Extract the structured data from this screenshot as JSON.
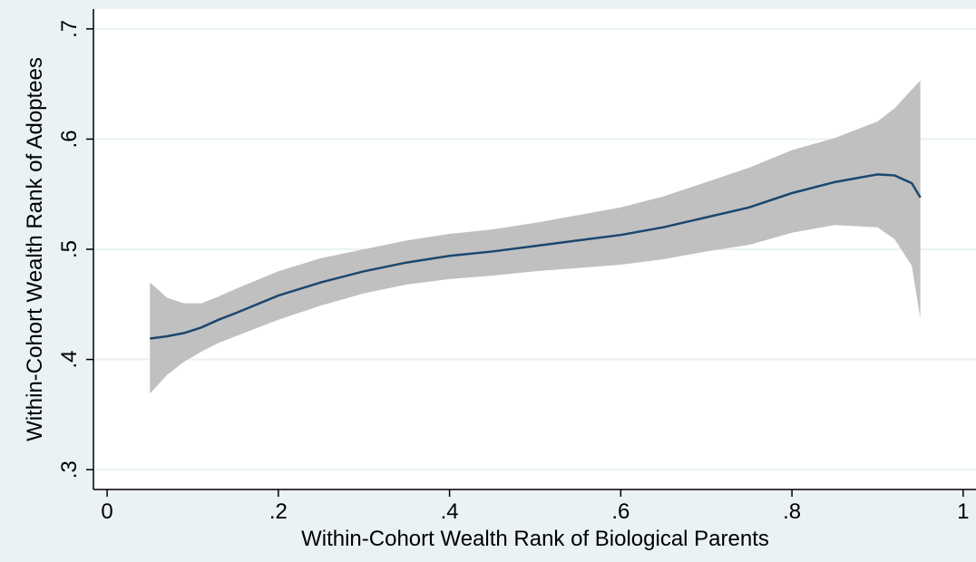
{
  "chart_data": {
    "type": "line",
    "x_label": "Within-Cohort Wealth Rank of Biological Parents",
    "y_label": "Within-Cohort Wealth Rank of Adoptees",
    "x": [
      0.05,
      0.07,
      0.09,
      0.11,
      0.13,
      0.15,
      0.2,
      0.25,
      0.3,
      0.35,
      0.4,
      0.45,
      0.5,
      0.55,
      0.6,
      0.65,
      0.7,
      0.75,
      0.8,
      0.85,
      0.9,
      0.92,
      0.94,
      0.95
    ],
    "values": [
      0.419,
      0.421,
      0.424,
      0.429,
      0.436,
      0.442,
      0.458,
      0.47,
      0.48,
      0.488,
      0.494,
      0.498,
      0.503,
      0.508,
      0.513,
      0.52,
      0.529,
      0.538,
      0.551,
      0.561,
      0.568,
      0.567,
      0.56,
      0.547
    ],
    "ci_upper": [
      0.47,
      0.456,
      0.451,
      0.451,
      0.457,
      0.464,
      0.48,
      0.492,
      0.5,
      0.508,
      0.514,
      0.518,
      0.524,
      0.531,
      0.538,
      0.548,
      0.561,
      0.574,
      0.59,
      0.601,
      0.616,
      0.628,
      0.645,
      0.653
    ],
    "ci_lower": [
      0.369,
      0.386,
      0.398,
      0.407,
      0.415,
      0.421,
      0.436,
      0.449,
      0.46,
      0.468,
      0.473,
      0.476,
      0.48,
      0.483,
      0.486,
      0.491,
      0.498,
      0.504,
      0.515,
      0.522,
      0.52,
      0.509,
      0.485,
      0.437
    ],
    "color": "#1a476f",
    "band_color": "#c0c0c0",
    "xlim": [
      -0.016,
      1.015
    ],
    "ylim": [
      0.282,
      0.718
    ],
    "xticks": [
      0,
      {
        "value": 0.2,
        "label": ".2"
      },
      {
        "value": 0.4,
        "label": ".4"
      },
      {
        "value": 0.6,
        "label": ".6"
      },
      {
        "value": 0.8,
        "label": ".8"
      },
      1
    ],
    "yticks": [
      {
        "value": 0.3,
        "label": ".3"
      },
      {
        "value": 0.4,
        "label": ".4"
      },
      {
        "value": 0.5,
        "label": ".5"
      },
      {
        "value": 0.6,
        "label": ".6"
      },
      {
        "value": 0.7,
        "label": ".7"
      }
    ],
    "grid": true,
    "grid_color": "#eaf2f3"
  }
}
